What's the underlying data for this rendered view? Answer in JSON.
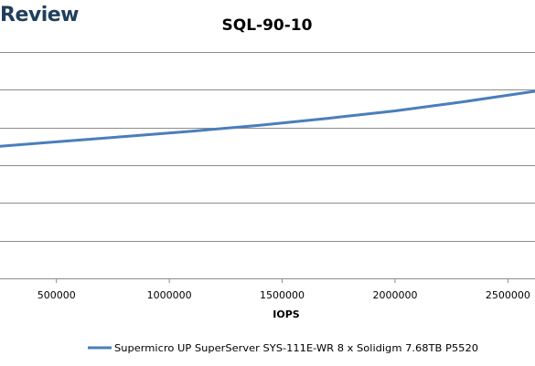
{
  "brand": {
    "text": "Review"
  },
  "colors": {
    "series": "#4a7ebb",
    "grid": "#8c8c8c"
  },
  "chart_data": {
    "type": "line",
    "title": "SQL-90-10",
    "xlabel": "IOPS",
    "ylabel": "",
    "xlim": [
      250000,
      2620000
    ],
    "ylim": [
      0,
      3
    ],
    "grid": true,
    "legend_position": "bottom",
    "x_ticks": [
      500000,
      1000000,
      1500000,
      2000000,
      2500000
    ],
    "x_tick_labels": [
      "500000",
      "1000000",
      "1500000",
      "2000000",
      "2500000"
    ],
    "y_gridlines": [
      0,
      0.5,
      1,
      1.5,
      2,
      2.5,
      3
    ],
    "series": [
      {
        "name": "Supermicro UP SuperServer SYS-111E-WR 8 x Solidigm 7.68TB P5520",
        "x": [
          250000,
          500000,
          800000,
          1100000,
          1400000,
          1700000,
          2000000,
          2300000,
          2620000
        ],
        "y": [
          1.75,
          1.81,
          1.88,
          1.95,
          2.03,
          2.12,
          2.22,
          2.34,
          2.48
        ]
      }
    ]
  }
}
